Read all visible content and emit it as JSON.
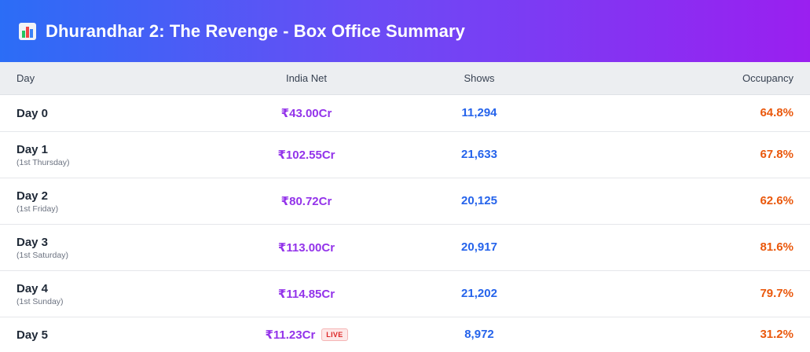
{
  "header": {
    "icon": "bar-chart-icon",
    "title": "Dhurandhar 2: The Revenge - Box Office Summary"
  },
  "columns": {
    "day": "Day",
    "net": "India Net",
    "shows": "Shows",
    "occupancy": "Occupancy"
  },
  "rows": [
    {
      "day": "Day 0",
      "sub": "",
      "net": "₹43.00Cr",
      "shows": "11,294",
      "occupancy": "64.8%"
    },
    {
      "day": "Day 1",
      "sub": "(1st Thursday)",
      "net": "₹102.55Cr",
      "shows": "21,633",
      "occupancy": "67.8%"
    },
    {
      "day": "Day 2",
      "sub": "(1st Friday)",
      "net": "₹80.72Cr",
      "shows": "20,125",
      "occupancy": "62.6%"
    },
    {
      "day": "Day 3",
      "sub": "(1st Saturday)",
      "net": "₹113.00Cr",
      "shows": "20,917",
      "occupancy": "81.6%"
    },
    {
      "day": "Day 4",
      "sub": "(1st Sunday)",
      "net": "₹114.85Cr",
      "shows": "21,202",
      "occupancy": "79.7%"
    },
    {
      "day": "Day 5",
      "sub": "",
      "net": "₹11.23Cr",
      "badge": "LIVE",
      "shows": "8,972",
      "occupancy": "31.2%"
    }
  ],
  "colors": {
    "header_gradient_start": "#2b6df6",
    "header_gradient_end": "#9a1ff0",
    "net": "#9333ea",
    "shows": "#2563eb",
    "occupancy": "#ea580c",
    "live_badge": "#dc2626"
  }
}
